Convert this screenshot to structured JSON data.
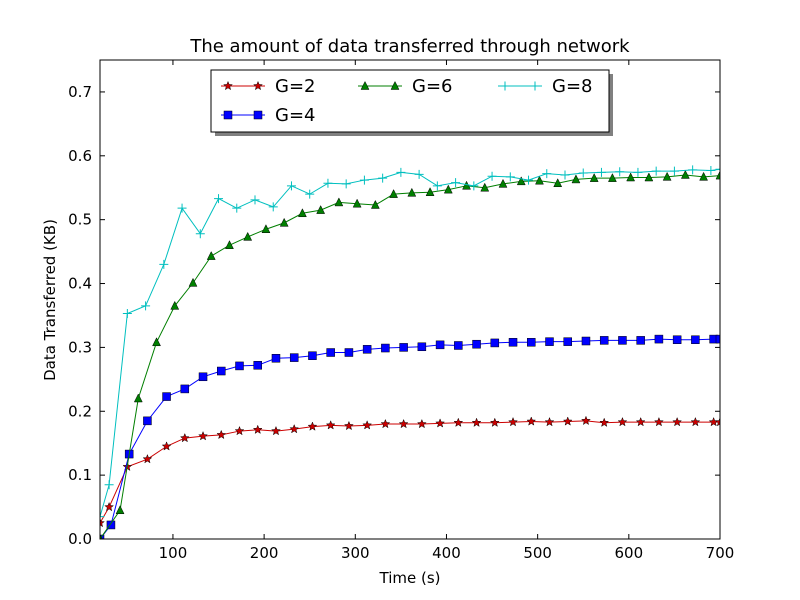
{
  "chart_data": {
    "type": "line",
    "title": "The amount of data transferred through network",
    "xlabel": "Time (s)",
    "ylabel": "Data Transferred (KB)",
    "xlim": [
      20,
      700
    ],
    "ylim": [
      0,
      0.75
    ],
    "xticks": [
      100,
      200,
      300,
      400,
      500,
      600,
      700
    ],
    "yticks": [
      0.0,
      0.1,
      0.2,
      0.3,
      0.4,
      0.5,
      0.6,
      0.7
    ],
    "xtick_labels": [
      "100",
      "200",
      "300",
      "400",
      "500",
      "600",
      "700"
    ],
    "ytick_labels": [
      "0.0",
      "0.1",
      "0.2",
      "0.3",
      "0.4",
      "0.5",
      "0.6",
      "0.7"
    ],
    "grid": false,
    "legend_position": "upper-center",
    "x": [
      20,
      30,
      40,
      50,
      60,
      70,
      90,
      110,
      130,
      150,
      170,
      190,
      210,
      230,
      250,
      270,
      290,
      310,
      330,
      350,
      370,
      390,
      410,
      430,
      450,
      470,
      490,
      510,
      530,
      550,
      570,
      590,
      610,
      630,
      650,
      670,
      690,
      700
    ],
    "series": [
      {
        "name": "G=2",
        "color": "#cc0000",
        "marker": "star",
        "x": [
          20,
          30,
          50,
          72,
          93,
          113,
          133,
          153,
          173,
          193,
          213,
          233,
          253,
          273,
          293,
          313,
          333,
          353,
          373,
          393,
          413,
          433,
          453,
          473,
          493,
          513,
          533,
          553,
          573,
          593,
          613,
          633,
          653,
          673,
          693,
          700
        ],
        "values": [
          0.025,
          0.05,
          0.113,
          0.125,
          0.145,
          0.158,
          0.161,
          0.163,
          0.169,
          0.171,
          0.169,
          0.172,
          0.176,
          0.178,
          0.177,
          0.178,
          0.18,
          0.18,
          0.18,
          0.181,
          0.182,
          0.182,
          0.182,
          0.183,
          0.184,
          0.183,
          0.184,
          0.185,
          0.182,
          0.183,
          0.183,
          0.183,
          0.183,
          0.183,
          0.183,
          0.183
        ]
      },
      {
        "name": "G=4",
        "color": "#0000ff",
        "marker": "square",
        "x": [
          20,
          32,
          52,
          72,
          93,
          113,
          133,
          153,
          173,
          193,
          213,
          233,
          253,
          273,
          293,
          313,
          333,
          353,
          373,
          393,
          413,
          433,
          453,
          473,
          493,
          513,
          533,
          553,
          573,
          593,
          613,
          633,
          653,
          673,
          693,
          700
        ],
        "values": [
          0.0,
          0.022,
          0.133,
          0.185,
          0.223,
          0.235,
          0.254,
          0.263,
          0.271,
          0.272,
          0.283,
          0.284,
          0.287,
          0.292,
          0.292,
          0.297,
          0.299,
          0.3,
          0.301,
          0.304,
          0.303,
          0.305,
          0.307,
          0.308,
          0.308,
          0.309,
          0.309,
          0.31,
          0.311,
          0.311,
          0.311,
          0.313,
          0.312,
          0.312,
          0.313,
          0.313
        ]
      },
      {
        "name": "G=6",
        "color": "#007f00",
        "marker": "triangle",
        "x": [
          20,
          42,
          62,
          82,
          102,
          122,
          142,
          162,
          182,
          202,
          222,
          242,
          262,
          282,
          302,
          322,
          342,
          362,
          382,
          402,
          422,
          442,
          462,
          482,
          502,
          522,
          542,
          562,
          582,
          602,
          622,
          642,
          662,
          682,
          700
        ],
        "values": [
          0.0,
          0.045,
          0.22,
          0.308,
          0.365,
          0.401,
          0.443,
          0.46,
          0.473,
          0.485,
          0.495,
          0.51,
          0.515,
          0.527,
          0.525,
          0.523,
          0.54,
          0.542,
          0.543,
          0.547,
          0.553,
          0.55,
          0.556,
          0.56,
          0.561,
          0.557,
          0.563,
          0.565,
          0.565,
          0.566,
          0.566,
          0.567,
          0.57,
          0.567,
          0.569
        ]
      },
      {
        "name": "G=8",
        "color": "#00bfbf",
        "marker": "plus",
        "x": [
          20,
          30,
          50,
          70,
          90,
          110,
          130,
          150,
          170,
          190,
          210,
          230,
          250,
          270,
          290,
          310,
          330,
          350,
          370,
          390,
          410,
          430,
          450,
          470,
          490,
          510,
          530,
          550,
          570,
          590,
          610,
          630,
          650,
          670,
          690,
          700
        ],
        "values": [
          0.035,
          0.085,
          0.353,
          0.365,
          0.43,
          0.518,
          0.478,
          0.533,
          0.518,
          0.531,
          0.52,
          0.553,
          0.54,
          0.557,
          0.556,
          0.562,
          0.565,
          0.574,
          0.571,
          0.553,
          0.558,
          0.553,
          0.568,
          0.567,
          0.562,
          0.572,
          0.57,
          0.573,
          0.574,
          0.575,
          0.574,
          0.576,
          0.576,
          0.578,
          0.577,
          0.579
        ]
      }
    ]
  }
}
